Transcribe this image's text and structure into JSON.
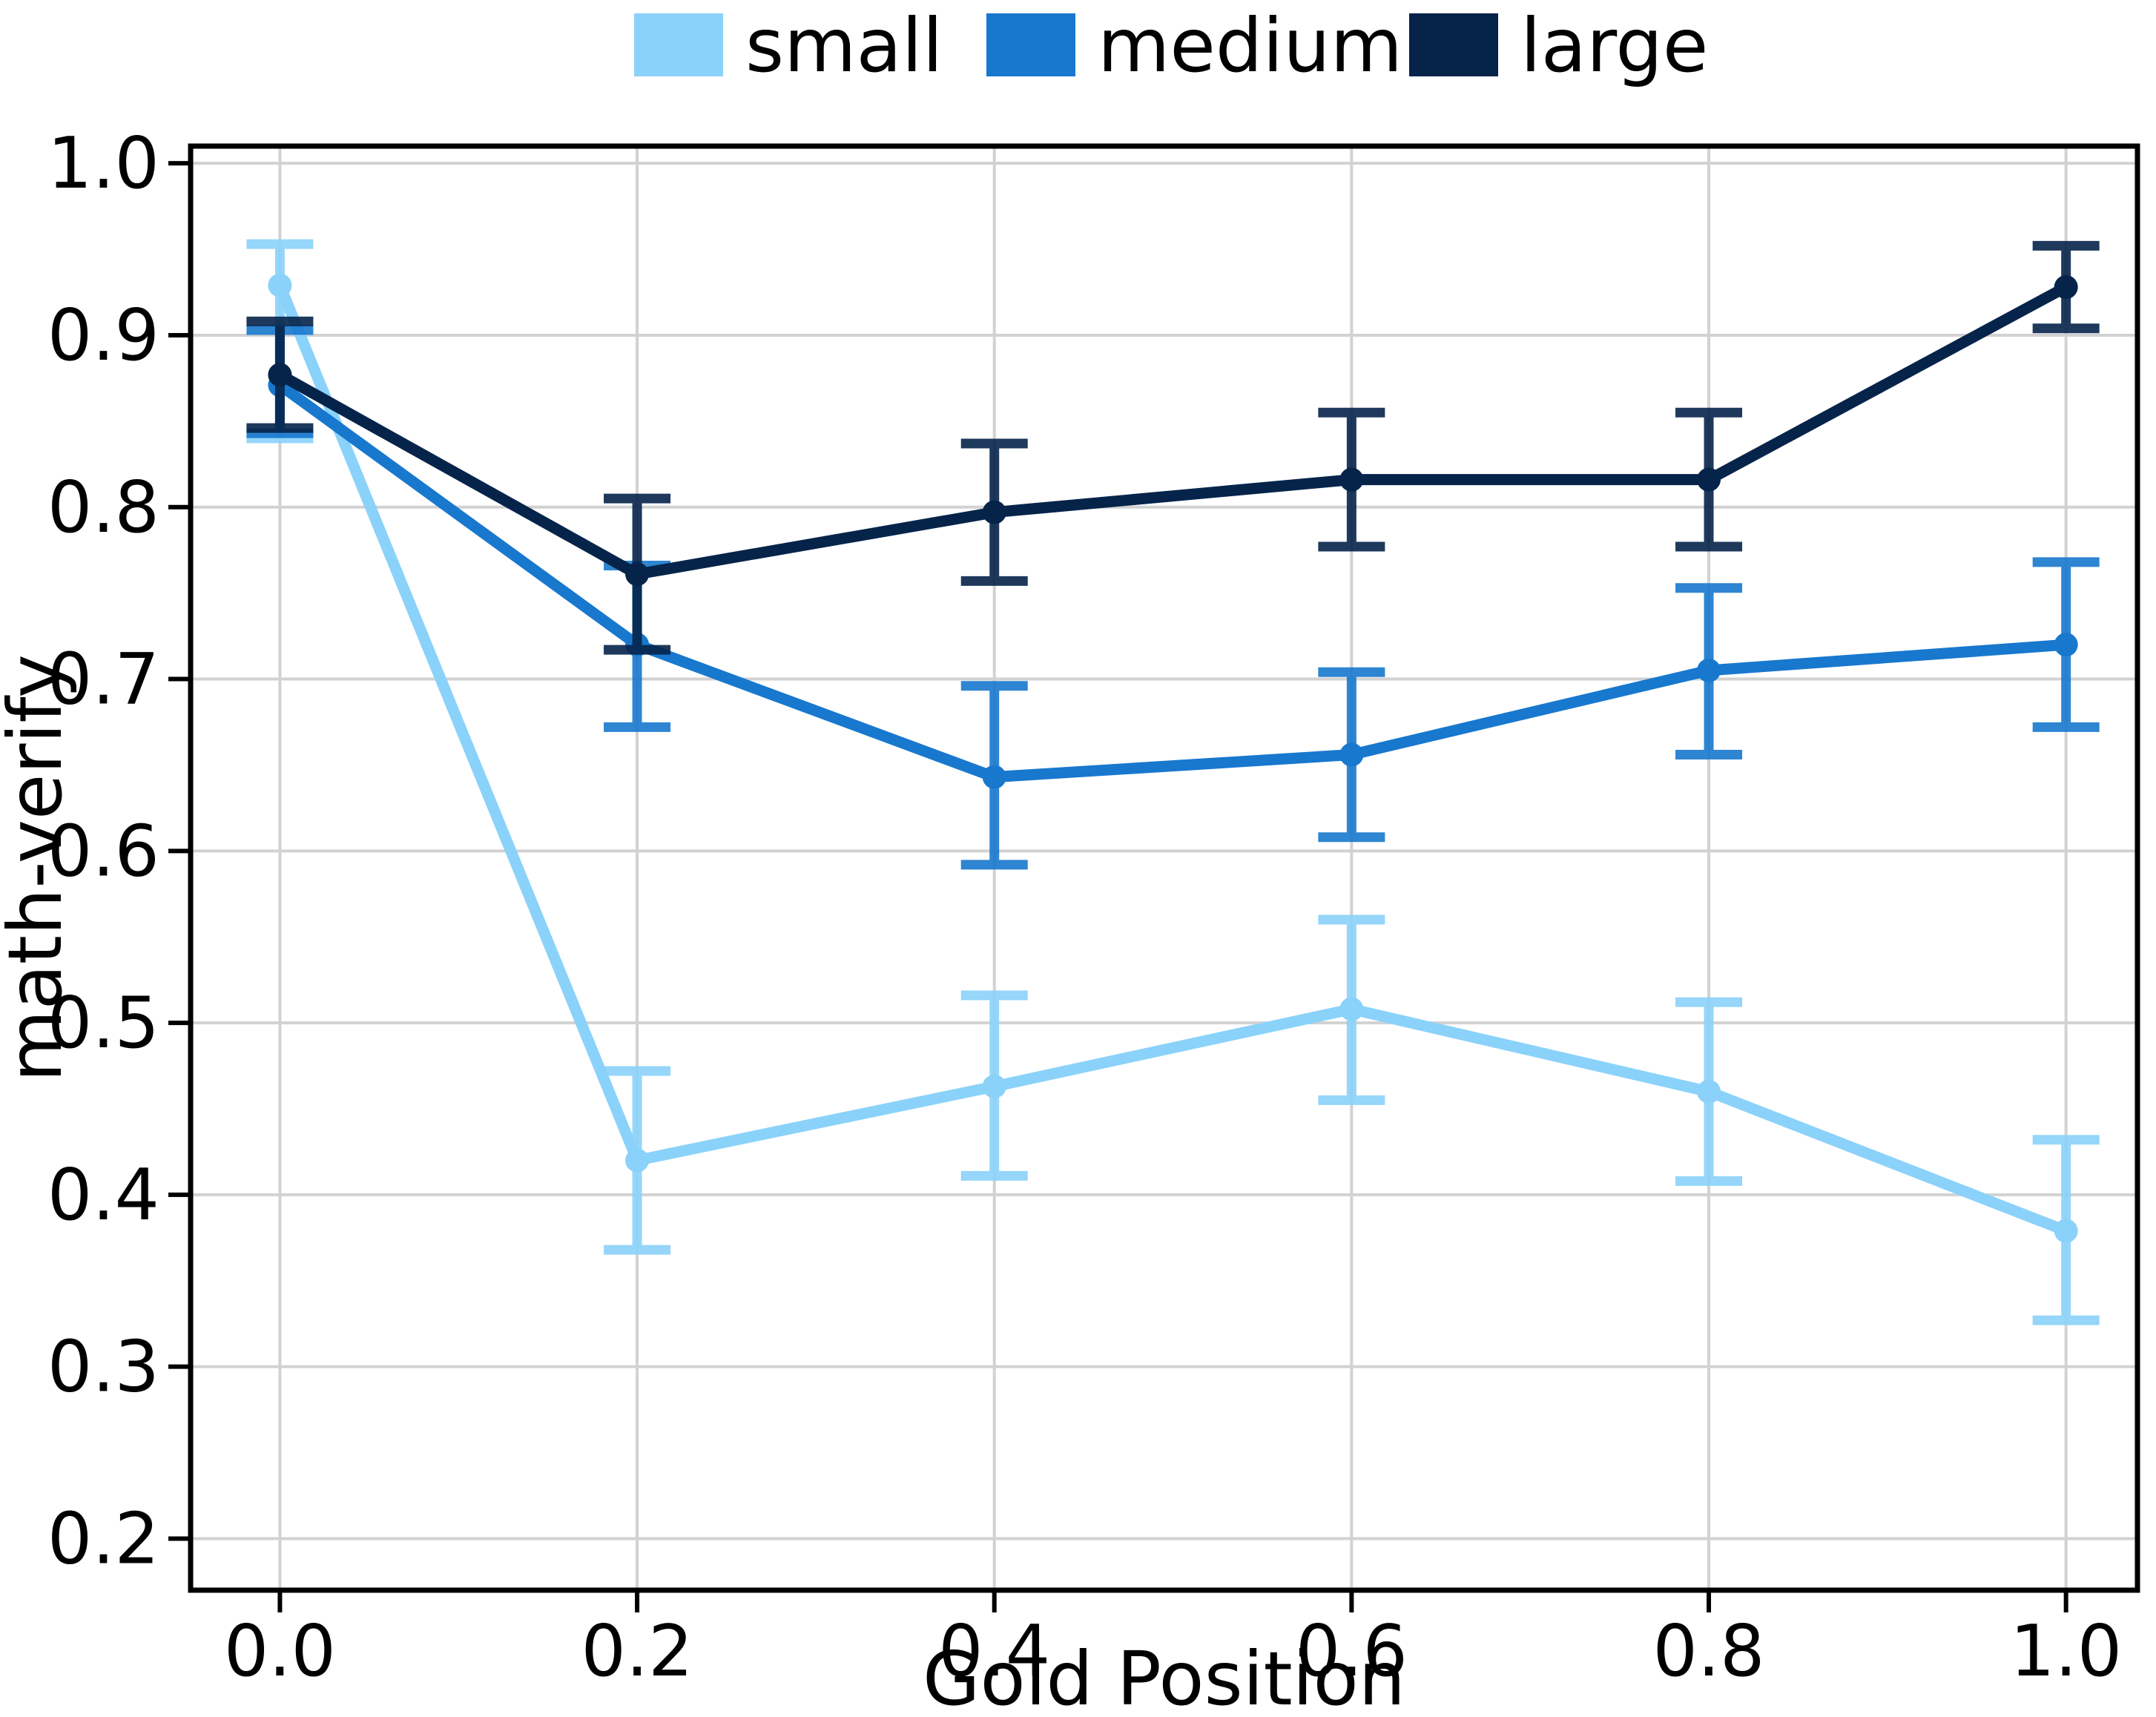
{
  "figure": {
    "kind": "error-bar line chart",
    "xlabel": "Gold Position",
    "ylabel": "math-verify"
  },
  "chart_data": {
    "type": "line",
    "x": [
      0.0,
      0.2,
      0.4,
      0.6,
      0.8,
      1.0
    ],
    "x_tick_labels": [
      "0.0",
      "0.2",
      "0.4",
      "0.6",
      "0.8",
      "1.0"
    ],
    "y_ticks": [
      0.2,
      0.3,
      0.4,
      0.5,
      0.6,
      0.7,
      0.8,
      0.9,
      1.0
    ],
    "y_tick_labels": [
      "0.2",
      "0.3",
      "0.4",
      "0.5",
      "0.6",
      "0.7",
      "0.8",
      "0.9",
      "1.0"
    ],
    "xlim": [
      -0.05,
      1.04
    ],
    "ylim": [
      0.17,
      1.01
    ],
    "xlabel": "Gold Position",
    "ylabel": "math-verify",
    "grid": true,
    "legend_position": "top",
    "series": [
      {
        "name": "small",
        "color": "#8AD2FA",
        "values": [
          0.929,
          0.42,
          0.463,
          0.508,
          0.46,
          0.379
        ],
        "err_lo": [
          0.84,
          0.368,
          0.411,
          0.455,
          0.408,
          0.327
        ],
        "err_hi": [
          0.953,
          0.472,
          0.516,
          0.56,
          0.512,
          0.432
        ]
      },
      {
        "name": "medium",
        "color": "#1878CE",
        "values": [
          0.871,
          0.72,
          0.643,
          0.656,
          0.705,
          0.72
        ],
        "err_lo": [
          0.843,
          0.672,
          0.592,
          0.608,
          0.656,
          0.672
        ],
        "err_hi": [
          0.903,
          0.766,
          0.696,
          0.704,
          0.753,
          0.768
        ]
      },
      {
        "name": "large",
        "color": "#06244A",
        "values": [
          0.877,
          0.761,
          0.797,
          0.816,
          0.816,
          0.928
        ],
        "err_lo": [
          0.846,
          0.717,
          0.757,
          0.777,
          0.777,
          0.904
        ],
        "err_hi": [
          0.908,
          0.805,
          0.837,
          0.855,
          0.855,
          0.952
        ]
      }
    ]
  },
  "style": {
    "grid_color": "#d2d2d2",
    "axis_color": "#000000",
    "text_color": "#000000",
    "background": "#ffffff"
  }
}
